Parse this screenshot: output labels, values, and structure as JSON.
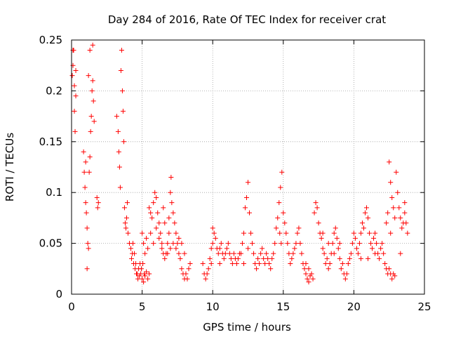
{
  "chart_data": {
    "type": "scatter",
    "title": "Day 284 of 2016, Rate Of TEC Index for receiver crat",
    "xlabel": "GPS time / hours",
    "ylabel": "ROTI / TECUs",
    "xlim": [
      0,
      25
    ],
    "ylim": [
      0,
      0.25
    ],
    "x_ticks": [
      0,
      5,
      10,
      15,
      20,
      25
    ],
    "x_tick_labels": [
      "0",
      "5",
      "10",
      "15",
      "20",
      "25"
    ],
    "y_ticks": [
      0,
      0.05,
      0.1,
      0.15,
      0.2,
      0.25
    ],
    "y_tick_labels": [
      "0",
      "0.05",
      "0.1",
      "0.15",
      "0.2",
      "0.25"
    ],
    "grid": true,
    "marker": "+",
    "color": "#ff0000",
    "series": [
      {
        "name": "ROTI",
        "points": [
          [
            0.05,
            0.215
          ],
          [
            0.1,
            0.225
          ],
          [
            0.15,
            0.24
          ],
          [
            0.2,
            0.18
          ],
          [
            0.25,
            0.16
          ],
          [
            0.3,
            0.195
          ],
          [
            0.1,
            0.24
          ],
          [
            0.2,
            0.205
          ],
          [
            0.3,
            0.22
          ],
          [
            0.85,
            0.14
          ],
          [
            0.9,
            0.12
          ],
          [
            0.95,
            0.105
          ],
          [
            1.0,
            0.09
          ],
          [
            1.05,
            0.08
          ],
          [
            1.1,
            0.065
          ],
          [
            1.15,
            0.05
          ],
          [
            1.2,
            0.045
          ],
          [
            1.25,
            0.12
          ],
          [
            1.3,
            0.135
          ],
          [
            1.35,
            0.16
          ],
          [
            1.4,
            0.175
          ],
          [
            1.45,
            0.2
          ],
          [
            1.5,
            0.21
          ],
          [
            1.55,
            0.19
          ],
          [
            1.6,
            0.17
          ],
          [
            1.1,
            0.025
          ],
          [
            1.0,
            0.13
          ],
          [
            1.2,
            0.215
          ],
          [
            1.3,
            0.24
          ],
          [
            1.5,
            0.245
          ],
          [
            1.8,
            0.095
          ],
          [
            1.85,
            0.085
          ],
          [
            1.9,
            0.09
          ],
          [
            3.2,
            0.175
          ],
          [
            3.3,
            0.16
          ],
          [
            3.35,
            0.14
          ],
          [
            3.4,
            0.125
          ],
          [
            3.45,
            0.105
          ],
          [
            3.5,
            0.22
          ],
          [
            3.55,
            0.24
          ],
          [
            3.6,
            0.2
          ],
          [
            3.65,
            0.18
          ],
          [
            3.7,
            0.15
          ],
          [
            3.75,
            0.085
          ],
          [
            3.8,
            0.07
          ],
          [
            3.85,
            0.065
          ],
          [
            3.9,
            0.075
          ],
          [
            3.95,
            0.09
          ],
          [
            4.0,
            0.06
          ],
          [
            4.1,
            0.05
          ],
          [
            4.2,
            0.045
          ],
          [
            4.3,
            0.04
          ],
          [
            4.4,
            0.03
          ],
          [
            4.5,
            0.025
          ],
          [
            4.6,
            0.02
          ],
          [
            4.7,
            0.015
          ],
          [
            4.8,
            0.018
          ],
          [
            4.9,
            0.02
          ],
          [
            5.0,
            0.015
          ],
          [
            5.1,
            0.012
          ],
          [
            5.2,
            0.018
          ],
          [
            5.3,
            0.022
          ],
          [
            5.4,
            0.015
          ],
          [
            5.5,
            0.02
          ],
          [
            4.25,
            0.035
          ],
          [
            4.35,
            0.05
          ],
          [
            4.45,
            0.04
          ],
          [
            4.55,
            0.03
          ],
          [
            4.65,
            0.02
          ],
          [
            4.75,
            0.025
          ],
          [
            4.85,
            0.03
          ],
          [
            4.95,
            0.025
          ],
          [
            5.05,
            0.03
          ],
          [
            5.15,
            0.02
          ],
          [
            5.0,
            0.06
          ],
          [
            5.1,
            0.05
          ],
          [
            5.2,
            0.04
          ],
          [
            5.3,
            0.055
          ],
          [
            5.4,
            0.045
          ],
          [
            5.5,
            0.085
          ],
          [
            5.6,
            0.08
          ],
          [
            5.7,
            0.075
          ],
          [
            5.8,
            0.09
          ],
          [
            5.9,
            0.1
          ],
          [
            6.0,
            0.095
          ],
          [
            6.1,
            0.08
          ],
          [
            6.2,
            0.07
          ],
          [
            6.3,
            0.06
          ],
          [
            6.4,
            0.05
          ],
          [
            6.5,
            0.04
          ],
          [
            6.6,
            0.035
          ],
          [
            6.7,
            0.04
          ],
          [
            6.8,
            0.05
          ],
          [
            6.9,
            0.06
          ],
          [
            7.0,
            0.1
          ],
          [
            7.05,
            0.115
          ],
          [
            7.1,
            0.09
          ],
          [
            7.2,
            0.08
          ],
          [
            7.3,
            0.07
          ],
          [
            7.4,
            0.06
          ],
          [
            7.5,
            0.05
          ],
          [
            7.6,
            0.04
          ],
          [
            7.7,
            0.035
          ],
          [
            7.8,
            0.025
          ],
          [
            7.9,
            0.02
          ],
          [
            8.0,
            0.015
          ],
          [
            8.1,
            0.02
          ],
          [
            8.2,
            0.015
          ],
          [
            8.3,
            0.025
          ],
          [
            8.4,
            0.03
          ],
          [
            5.6,
            0.06
          ],
          [
            5.8,
            0.05
          ],
          [
            6.0,
            0.065
          ],
          [
            6.2,
            0.055
          ],
          [
            6.4,
            0.045
          ],
          [
            6.6,
            0.07
          ],
          [
            6.8,
            0.04
          ],
          [
            7.0,
            0.045
          ],
          [
            7.2,
            0.05
          ],
          [
            7.4,
            0.045
          ],
          [
            7.6,
            0.055
          ],
          [
            7.8,
            0.05
          ],
          [
            8.0,
            0.04
          ],
          [
            6.5,
            0.085
          ],
          [
            6.9,
            0.075
          ],
          [
            9.3,
            0.03
          ],
          [
            9.4,
            0.02
          ],
          [
            9.5,
            0.015
          ],
          [
            9.6,
            0.02
          ],
          [
            9.7,
            0.025
          ],
          [
            9.8,
            0.035
          ],
          [
            9.9,
            0.045
          ],
          [
            10.0,
            0.05
          ],
          [
            10.1,
            0.06
          ],
          [
            10.2,
            0.055
          ],
          [
            10.3,
            0.045
          ],
          [
            10.4,
            0.04
          ],
          [
            10.5,
            0.045
          ],
          [
            10.6,
            0.05
          ],
          [
            10.7,
            0.04
          ],
          [
            10.8,
            0.035
          ],
          [
            10.9,
            0.04
          ],
          [
            11.0,
            0.045
          ],
          [
            11.1,
            0.05
          ],
          [
            11.2,
            0.04
          ],
          [
            11.3,
            0.035
          ],
          [
            11.4,
            0.03
          ],
          [
            11.5,
            0.04
          ],
          [
            11.6,
            0.035
          ],
          [
            11.7,
            0.03
          ],
          [
            11.8,
            0.035
          ],
          [
            11.9,
            0.04
          ],
          [
            10.0,
            0.065
          ],
          [
            9.9,
            0.03
          ],
          [
            10.5,
            0.03
          ],
          [
            12.0,
            0.04
          ],
          [
            12.1,
            0.05
          ],
          [
            12.2,
            0.06
          ],
          [
            12.3,
            0.085
          ],
          [
            12.4,
            0.095
          ],
          [
            12.5,
            0.11
          ],
          [
            12.6,
            0.08
          ],
          [
            12.7,
            0.06
          ],
          [
            12.8,
            0.05
          ],
          [
            12.9,
            0.04
          ],
          [
            12.2,
            0.03
          ],
          [
            12.5,
            0.045
          ],
          [
            13.0,
            0.03
          ],
          [
            13.1,
            0.025
          ],
          [
            13.2,
            0.035
          ],
          [
            13.3,
            0.03
          ],
          [
            13.4,
            0.04
          ],
          [
            13.5,
            0.045
          ],
          [
            13.6,
            0.035
          ],
          [
            13.7,
            0.03
          ],
          [
            13.8,
            0.04
          ],
          [
            13.9,
            0.035
          ],
          [
            14.0,
            0.03
          ],
          [
            14.1,
            0.025
          ],
          [
            14.2,
            0.035
          ],
          [
            14.3,
            0.04
          ],
          [
            14.4,
            0.05
          ],
          [
            14.5,
            0.065
          ],
          [
            14.6,
            0.075
          ],
          [
            14.7,
            0.09
          ],
          [
            14.8,
            0.105
          ],
          [
            14.9,
            0.12
          ],
          [
            14.75,
            0.06
          ],
          [
            14.85,
            0.05
          ],
          [
            15.0,
            0.08
          ],
          [
            15.1,
            0.07
          ],
          [
            15.2,
            0.06
          ],
          [
            15.3,
            0.05
          ],
          [
            15.4,
            0.04
          ],
          [
            15.5,
            0.03
          ],
          [
            15.6,
            0.035
          ],
          [
            15.7,
            0.04
          ],
          [
            15.8,
            0.045
          ],
          [
            15.9,
            0.05
          ],
          [
            16.0,
            0.06
          ],
          [
            16.1,
            0.065
          ],
          [
            16.2,
            0.05
          ],
          [
            16.3,
            0.04
          ],
          [
            16.4,
            0.03
          ],
          [
            16.5,
            0.025
          ],
          [
            16.6,
            0.02
          ],
          [
            16.7,
            0.015
          ],
          [
            16.8,
            0.012
          ],
          [
            16.9,
            0.018
          ],
          [
            17.0,
            0.02
          ],
          [
            17.1,
            0.015
          ],
          [
            16.6,
            0.03
          ],
          [
            16.8,
            0.025
          ],
          [
            17.2,
            0.08
          ],
          [
            17.3,
            0.09
          ],
          [
            17.4,
            0.085
          ],
          [
            17.5,
            0.07
          ],
          [
            17.6,
            0.06
          ],
          [
            17.7,
            0.055
          ],
          [
            17.8,
            0.045
          ],
          [
            17.9,
            0.04
          ],
          [
            18.0,
            0.03
          ],
          [
            18.1,
            0.035
          ],
          [
            18.2,
            0.025
          ],
          [
            18.3,
            0.03
          ],
          [
            18.4,
            0.04
          ],
          [
            18.5,
            0.05
          ],
          [
            18.6,
            0.06
          ],
          [
            18.7,
            0.065
          ],
          [
            18.8,
            0.055
          ],
          [
            18.9,
            0.045
          ],
          [
            19.0,
            0.035
          ],
          [
            19.1,
            0.025
          ],
          [
            19.2,
            0.03
          ],
          [
            19.3,
            0.02
          ],
          [
            19.4,
            0.015
          ],
          [
            19.5,
            0.02
          ],
          [
            19.6,
            0.03
          ],
          [
            19.7,
            0.035
          ],
          [
            17.8,
            0.06
          ],
          [
            18.2,
            0.05
          ],
          [
            18.6,
            0.04
          ],
          [
            19.0,
            0.05
          ],
          [
            19.8,
            0.04
          ],
          [
            19.9,
            0.05
          ],
          [
            20.0,
            0.06
          ],
          [
            20.1,
            0.055
          ],
          [
            20.2,
            0.045
          ],
          [
            20.3,
            0.04
          ],
          [
            20.4,
            0.05
          ],
          [
            20.5,
            0.06
          ],
          [
            20.6,
            0.07
          ],
          [
            20.7,
            0.065
          ],
          [
            20.8,
            0.08
          ],
          [
            20.9,
            0.085
          ],
          [
            21.0,
            0.075
          ],
          [
            21.1,
            0.06
          ],
          [
            21.2,
            0.05
          ],
          [
            21.3,
            0.045
          ],
          [
            21.4,
            0.055
          ],
          [
            21.5,
            0.06
          ],
          [
            21.6,
            0.05
          ],
          [
            21.7,
            0.04
          ],
          [
            21.8,
            0.035
          ],
          [
            21.9,
            0.045
          ],
          [
            22.0,
            0.05
          ],
          [
            22.1,
            0.04
          ],
          [
            22.2,
            0.03
          ],
          [
            22.3,
            0.025
          ],
          [
            22.4,
            0.02
          ],
          [
            22.5,
            0.025
          ],
          [
            22.6,
            0.02
          ],
          [
            22.7,
            0.015
          ],
          [
            22.8,
            0.02
          ],
          [
            22.9,
            0.018
          ],
          [
            21.0,
            0.035
          ],
          [
            21.5,
            0.04
          ],
          [
            20.5,
            0.035
          ],
          [
            22.3,
            0.07
          ],
          [
            22.4,
            0.08
          ],
          [
            22.5,
            0.13
          ],
          [
            22.6,
            0.11
          ],
          [
            22.7,
            0.095
          ],
          [
            22.8,
            0.085
          ],
          [
            22.9,
            0.075
          ],
          [
            23.0,
            0.12
          ],
          [
            23.1,
            0.1
          ],
          [
            23.2,
            0.085
          ],
          [
            23.3,
            0.075
          ],
          [
            23.4,
            0.065
          ],
          [
            23.5,
            0.07
          ],
          [
            23.6,
            0.08
          ],
          [
            23.7,
            0.07
          ],
          [
            23.8,
            0.06
          ],
          [
            23.3,
            0.04
          ],
          [
            23.6,
            0.09
          ],
          [
            22.6,
            0.06
          ]
        ]
      }
    ]
  }
}
